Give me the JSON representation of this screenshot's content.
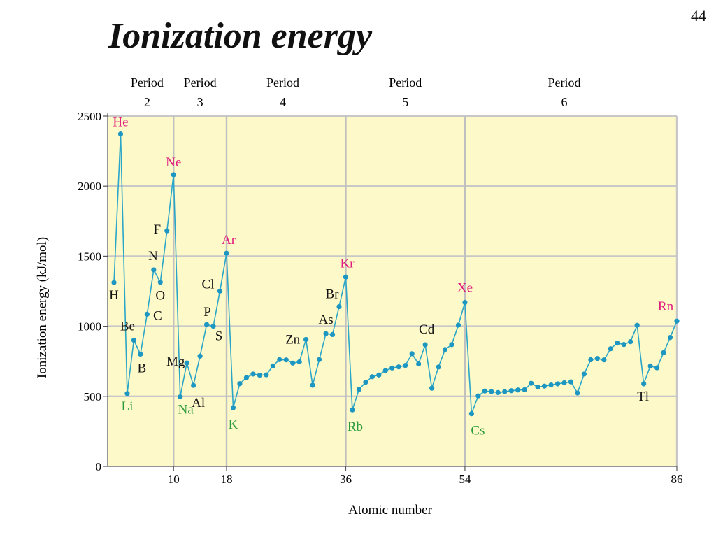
{
  "slide": {
    "number": "44",
    "title": "Ionization energy"
  },
  "chart_data": {
    "type": "line",
    "xlabel": "Atomic number",
    "ylabel": "Ionization energy (kJ/mol)",
    "xlim": [
      1,
      86
    ],
    "ylim": [
      0,
      2500
    ],
    "grid": true,
    "x_ticks": [
      10,
      18,
      36,
      54,
      86
    ],
    "y_ticks": [
      0,
      500,
      1000,
      1500,
      2000,
      2500
    ],
    "period_dividers": [
      10,
      18,
      36,
      54
    ],
    "periods": [
      {
        "label": "Period",
        "number": "2",
        "center_z": 6
      },
      {
        "label": "Period",
        "number": "3",
        "center_z": 14
      },
      {
        "label": "Period",
        "number": "4",
        "center_z": 26.5
      },
      {
        "label": "Period",
        "number": "5",
        "center_z": 45
      },
      {
        "label": "Period",
        "number": "6",
        "center_z": 69
      }
    ],
    "colors": {
      "line": "#2aa6c9",
      "point": "#1d97c2",
      "background": "#fdf9c8",
      "noble_gas_label": "#e0197d",
      "alkali_label": "#2a9a3a",
      "other_label": "#111111"
    },
    "series": [
      {
        "x": [
          1,
          2,
          3,
          4,
          5,
          6,
          7,
          8,
          9,
          10,
          11,
          12,
          13,
          14,
          15,
          16,
          17,
          18,
          19,
          20,
          21,
          22,
          23,
          24,
          25,
          26,
          27,
          28,
          29,
          30,
          31,
          32,
          33,
          34,
          35,
          36,
          37,
          38,
          39,
          40,
          41,
          42,
          43,
          44,
          45,
          46,
          47,
          48,
          49,
          50,
          51,
          52,
          53,
          54,
          55,
          56,
          57,
          58,
          59,
          60,
          61,
          62,
          63,
          64,
          65,
          66,
          67,
          68,
          69,
          70,
          71,
          72,
          73,
          74,
          75,
          76,
          77,
          78,
          79,
          80,
          81,
          82,
          83,
          84,
          85,
          86
        ],
        "values": [
          1312,
          2372,
          520,
          900,
          801,
          1086,
          1402,
          1314,
          1681,
          2081,
          496,
          738,
          578,
          787,
          1012,
          1000,
          1251,
          1521,
          419,
          590,
          633,
          659,
          651,
          653,
          717,
          762,
          760,
          737,
          746,
          906,
          579,
          762,
          947,
          941,
          1140,
          1351,
          403,
          549,
          600,
          640,
          652,
          684,
          702,
          710,
          720,
          804,
          731,
          868,
          558,
          709,
          834,
          869,
          1008,
          1170,
          376,
          503,
          538,
          534,
          527,
          533,
          540,
          545,
          547,
          593,
          566,
          573,
          581,
          589,
          597,
          603,
          524,
          659,
          761,
          770,
          760,
          840,
          880,
          870,
          890,
          1007,
          589,
          716,
          703,
          812,
          920,
          1037
        ]
      }
    ],
    "element_labels": [
      {
        "text": "H",
        "z": 1,
        "kind": "other"
      },
      {
        "text": "He",
        "z": 2,
        "kind": "noble"
      },
      {
        "text": "Li",
        "z": 3,
        "kind": "alkali"
      },
      {
        "text": "Be",
        "z": 4,
        "kind": "other"
      },
      {
        "text": "B",
        "z": 5,
        "kind": "other"
      },
      {
        "text": "C",
        "z": 6,
        "kind": "other"
      },
      {
        "text": "N",
        "z": 7,
        "kind": "other"
      },
      {
        "text": "O",
        "z": 8,
        "kind": "other"
      },
      {
        "text": "F",
        "z": 9,
        "kind": "other"
      },
      {
        "text": "Ne",
        "z": 10,
        "kind": "noble"
      },
      {
        "text": "Na",
        "z": 11,
        "kind": "alkali"
      },
      {
        "text": "Mg",
        "z": 12,
        "kind": "other"
      },
      {
        "text": "Al",
        "z": 13,
        "kind": "other"
      },
      {
        "text": "P",
        "z": 15,
        "kind": "other"
      },
      {
        "text": "S",
        "z": 16,
        "kind": "other"
      },
      {
        "text": "Cl",
        "z": 17,
        "kind": "other"
      },
      {
        "text": "Ar",
        "z": 18,
        "kind": "noble"
      },
      {
        "text": "K",
        "z": 19,
        "kind": "alkali"
      },
      {
        "text": "Zn",
        "z": 30,
        "kind": "other"
      },
      {
        "text": "As",
        "z": 33,
        "kind": "other"
      },
      {
        "text": "Br",
        "z": 35,
        "kind": "other"
      },
      {
        "text": "Kr",
        "z": 36,
        "kind": "noble"
      },
      {
        "text": "Rb",
        "z": 37,
        "kind": "alkali"
      },
      {
        "text": "Cd",
        "z": 48,
        "kind": "other"
      },
      {
        "text": "Xe",
        "z": 54,
        "kind": "noble"
      },
      {
        "text": "Cs",
        "z": 55,
        "kind": "alkali"
      },
      {
        "text": "Tl",
        "z": 81,
        "kind": "other"
      },
      {
        "text": "Rn",
        "z": 86,
        "kind": "noble"
      }
    ]
  }
}
